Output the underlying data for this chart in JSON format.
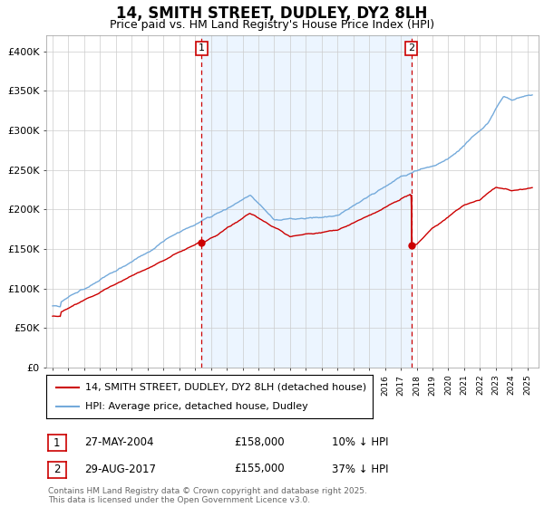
{
  "title": "14, SMITH STREET, DUDLEY, DY2 8LH",
  "subtitle": "Price paid vs. HM Land Registry's House Price Index (HPI)",
  "ylim": [
    0,
    420000
  ],
  "yticks": [
    0,
    50000,
    100000,
    150000,
    200000,
    250000,
    300000,
    350000,
    400000
  ],
  "ytick_labels": [
    "£0",
    "£50K",
    "£100K",
    "£150K",
    "£200K",
    "£250K",
    "£300K",
    "£350K",
    "£400K"
  ],
  "hpi_color": "#74aadb",
  "price_color": "#cc0000",
  "bg_fill_color": "#ddeeff",
  "vline_color": "#cc0000",
  "grid_color": "#cccccc",
  "marker1_year": 2004.42,
  "marker1_price": 158000,
  "marker2_year": 2017.66,
  "marker2_price": 155000,
  "marker2_pre_price": 218000,
  "legend_entries": [
    "14, SMITH STREET, DUDLEY, DY2 8LH (detached house)",
    "HPI: Average price, detached house, Dudley"
  ],
  "table_rows": [
    [
      "1",
      "27-MAY-2004",
      "£158,000",
      "10% ↓ HPI"
    ],
    [
      "2",
      "29-AUG-2017",
      "£155,000",
      "37% ↓ HPI"
    ]
  ],
  "footnote": "Contains HM Land Registry data © Crown copyright and database right 2025.\nThis data is licensed under the Open Government Licence v3.0.",
  "title_fontsize": 12,
  "subtitle_fontsize": 9,
  "axis_fontsize": 8,
  "legend_fontsize": 8,
  "table_fontsize": 8.5,
  "footnote_fontsize": 6.5
}
